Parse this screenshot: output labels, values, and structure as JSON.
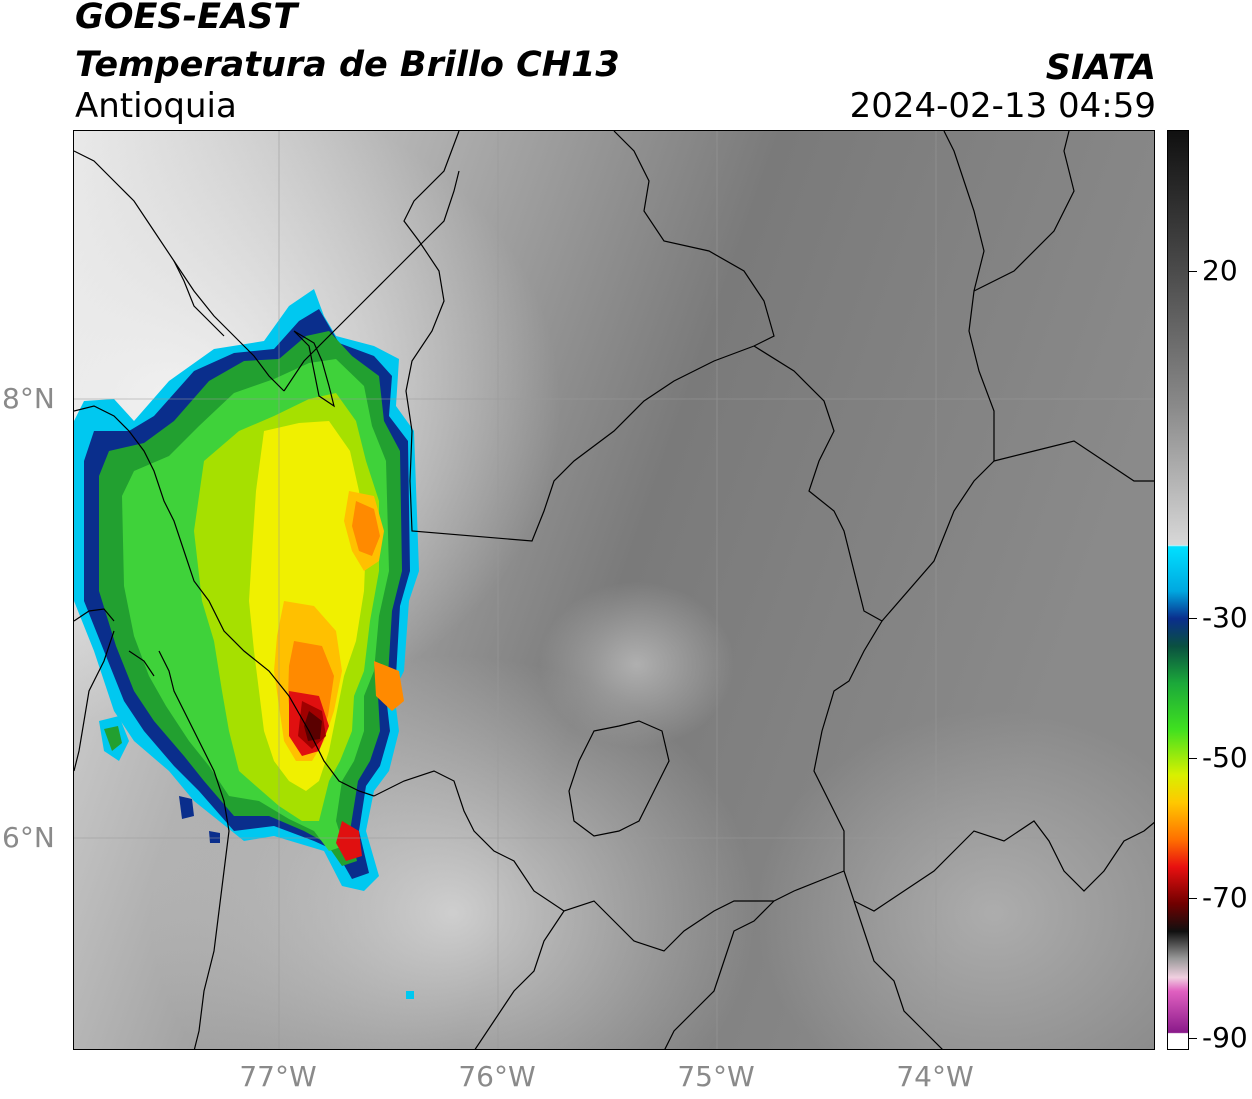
{
  "header": {
    "satellite": "GOES-EAST",
    "product": "Temperatura de Brillo CH13",
    "region": "Antioquia",
    "organization": "SIATA",
    "timestamp": "2024-02-13 04:59"
  },
  "axes": {
    "latitude_labels": [
      "8°N",
      "6°N"
    ],
    "longitude_labels": [
      "77°W",
      "76°W",
      "75°W",
      "74°W"
    ]
  },
  "colorbar": {
    "labels": [
      "20",
      "-30",
      "-50",
      "-70",
      "-90"
    ]
  },
  "colors": {
    "cold_cloud_core": "#5a0000",
    "warm_surface": "#7d7d7d",
    "cyan": "#00c8f0",
    "blue": "#0a2e8c",
    "green": "#22c22a",
    "yellow": "#f0f000",
    "orange": "#ff8a00",
    "red": "#e01010",
    "magenta": "#e040c0"
  }
}
